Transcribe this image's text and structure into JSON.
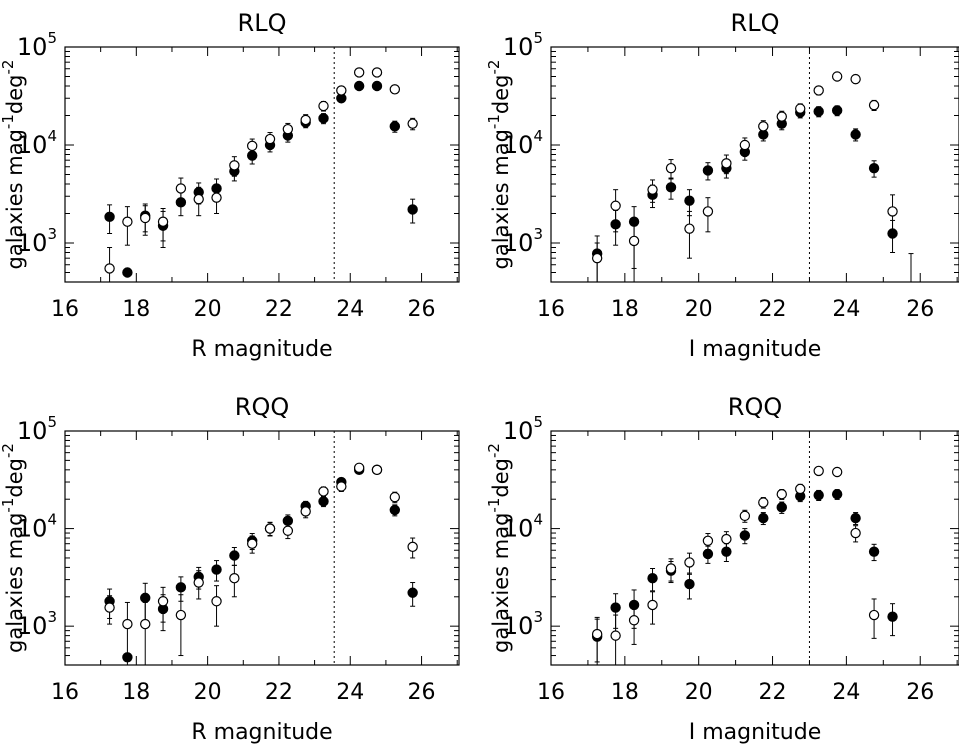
{
  "chart_data": [
    {
      "type": "scatter",
      "title": "RLQ",
      "xlabel": "R magnitude",
      "ylabel": {
        "prefix": "galaxies mag",
        "exp1": "-1",
        "mid": "deg",
        "exp2": "-2"
      },
      "x_ticks": [
        "16",
        "18",
        "20",
        "22",
        "24",
        "26"
      ],
      "y_ticks": [
        {
          "base": "10",
          "exp": "3",
          "value": 1000
        },
        {
          "base": "10",
          "exp": "4",
          "value": 10000
        },
        {
          "base": "10",
          "exp": "5",
          "value": 100000
        }
      ],
      "xlim": [
        16,
        27.05
      ],
      "ylim": [
        400,
        100000
      ],
      "y_scale": "log",
      "completeness_limit_x": 23.55,
      "series": [
        {
          "marker": "filled-circle",
          "x": [
            17.25,
            17.75,
            18.25,
            18.75,
            19.25,
            19.75,
            20.25,
            20.75,
            21.25,
            21.75,
            22.25,
            22.75,
            23.25,
            23.75,
            24.25,
            24.75,
            25.25,
            25.75
          ],
          "y": [
            1850,
            500,
            1900,
            1500,
            2600,
            3300,
            3600,
            5400,
            7800,
            10000,
            12500,
            17000,
            18700,
            30000,
            40000,
            40000,
            15500,
            2200
          ],
          "err_low": [
            600,
            0,
            600,
            600,
            700,
            800,
            900,
            1100,
            1400,
            1500,
            1800,
            2000,
            2200,
            2500,
            3000,
            3000,
            2000,
            600
          ],
          "err_high": [
            600,
            0,
            600,
            600,
            700,
            800,
            900,
            1100,
            1400,
            1500,
            1800,
            2000,
            2200,
            2500,
            3000,
            3000,
            2000,
            600
          ]
        },
        {
          "marker": "open-circle",
          "x": [
            17.25,
            17.75,
            18.25,
            18.75,
            19.25,
            19.75,
            20.25,
            20.75,
            21.25,
            21.75,
            22.25,
            22.75,
            23.25,
            23.75,
            24.25,
            24.75,
            25.25,
            25.75
          ],
          "y": [
            550,
            1650,
            1800,
            1650,
            3600,
            2800,
            2900,
            6200,
            9800,
            11500,
            14500,
            18000,
            25000,
            36000,
            55000,
            55000,
            37000,
            16500
          ],
          "err_low": [
            300,
            700,
            600,
            600,
            1000,
            900,
            900,
            1400,
            1700,
            1900,
            2100,
            2400,
            2800,
            3500,
            4500,
            4500,
            3500,
            2200
          ],
          "err_high": [
            350,
            700,
            600,
            600,
            1000,
            900,
            900,
            1400,
            1700,
            1900,
            2100,
            2400,
            2800,
            3500,
            4500,
            4500,
            3500,
            2200
          ]
        }
      ]
    },
    {
      "type": "scatter",
      "title": "RLQ",
      "xlabel": "I magnitude",
      "ylabel": {
        "prefix": "galaxies mag",
        "exp1": "-1",
        "mid": "deg",
        "exp2": "-2"
      },
      "x_ticks": [
        "16",
        "18",
        "20",
        "22",
        "24",
        "26"
      ],
      "y_ticks": [
        {
          "base": "10",
          "exp": "3",
          "value": 1000
        },
        {
          "base": "10",
          "exp": "4",
          "value": 10000
        },
        {
          "base": "10",
          "exp": "5",
          "value": 100000
        }
      ],
      "xlim": [
        16,
        27.05
      ],
      "ylim": [
        400,
        100000
      ],
      "y_scale": "log",
      "completeness_limit_x": 23.0,
      "series": [
        {
          "marker": "filled-circle",
          "x": [
            17.25,
            17.75,
            18.25,
            18.75,
            19.25,
            19.75,
            20.25,
            20.75,
            21.25,
            21.75,
            22.25,
            22.75,
            23.25,
            23.75,
            24.25,
            24.75,
            25.25,
            25.75
          ],
          "y": [
            780,
            1550,
            1650,
            3100,
            3700,
            2700,
            5500,
            5800,
            8500,
            12800,
            16500,
            21500,
            22000,
            22500,
            12800,
            5800,
            1250,
            0
          ],
          "err_low": [
            380,
            600,
            1650,
            800,
            900,
            800,
            1100,
            1200,
            1500,
            1800,
            2200,
            2600,
            2600,
            2600,
            1800,
            1100,
            450,
            0
          ],
          "err_high": [
            400,
            600,
            700,
            800,
            900,
            800,
            1100,
            1200,
            1500,
            1800,
            2200,
            2600,
            2600,
            2600,
            1800,
            1100,
            450,
            780
          ]
        },
        {
          "marker": "open-circle",
          "x": [
            17.25,
            17.75,
            18.25,
            18.75,
            19.25,
            19.75,
            20.25,
            20.75,
            21.25,
            21.75,
            22.25,
            22.75,
            23.25,
            23.75,
            24.25,
            24.75,
            25.25,
            25.75
          ],
          "y": [
            700,
            2400,
            1050,
            3500,
            5800,
            1400,
            2100,
            6500,
            10000,
            15500,
            19500,
            23500,
            36000,
            50000,
            47000,
            25500,
            2100,
            0
          ],
          "err_low": [
            300,
            1100,
            500,
            900,
            1300,
            700,
            800,
            1400,
            1800,
            2200,
            2600,
            2800,
            3500,
            4500,
            4300,
            3000,
            800,
            0
          ],
          "err_high": [
            300,
            1100,
            500,
            900,
            1300,
            700,
            800,
            1400,
            1800,
            2200,
            2600,
            2800,
            3500,
            4500,
            4300,
            3000,
            1000,
            0
          ]
        }
      ]
    },
    {
      "type": "scatter",
      "title": "RQQ",
      "xlabel": "R magnitude",
      "ylabel": {
        "prefix": "galaxies mag",
        "exp1": "-1",
        "mid": "deg",
        "exp2": "-2"
      },
      "x_ticks": [
        "16",
        "18",
        "20",
        "22",
        "24",
        "26"
      ],
      "y_ticks": [
        {
          "base": "10",
          "exp": "3",
          "value": 1000
        },
        {
          "base": "10",
          "exp": "4",
          "value": 10000
        },
        {
          "base": "10",
          "exp": "5",
          "value": 100000
        }
      ],
      "xlim": [
        16,
        27.05
      ],
      "ylim": [
        400,
        100000
      ],
      "y_scale": "log",
      "completeness_limit_x": 23.55,
      "series": [
        {
          "marker": "filled-circle",
          "x": [
            17.25,
            17.75,
            18.25,
            18.75,
            19.25,
            19.75,
            20.25,
            20.75,
            21.25,
            21.75,
            22.25,
            22.75,
            23.25,
            23.75,
            24.25,
            24.75,
            25.25,
            25.75
          ],
          "y": [
            1800,
            480,
            1950,
            1500,
            2500,
            3200,
            3800,
            5300,
            7500,
            10000,
            12000,
            17000,
            19000,
            30000,
            40000,
            40000,
            15500,
            2200
          ],
          "err_low": [
            600,
            0,
            800,
            600,
            700,
            800,
            900,
            1100,
            1400,
            1500,
            1800,
            2000,
            2200,
            2500,
            3000,
            3000,
            2000,
            600
          ],
          "err_high": [
            600,
            0,
            800,
            600,
            700,
            800,
            900,
            1100,
            1400,
            1500,
            1800,
            2000,
            2200,
            2500,
            3000,
            3000,
            2000,
            600
          ]
        },
        {
          "marker": "open-circle",
          "x": [
            17.25,
            17.75,
            18.25,
            18.75,
            19.25,
            19.75,
            20.25,
            20.75,
            21.25,
            21.75,
            22.25,
            22.75,
            23.25,
            23.75,
            24.25,
            24.75,
            25.25,
            25.75
          ],
          "y": [
            1550,
            1050,
            1050,
            1800,
            1300,
            2800,
            1800,
            3100,
            7000,
            10000,
            9500,
            15000,
            24000,
            27000,
            42000,
            40000,
            21000,
            6500
          ],
          "err_low": [
            500,
            700,
            700,
            700,
            800,
            900,
            800,
            1100,
            1400,
            1600,
            1600,
            2100,
            2700,
            3000,
            3500,
            3500,
            2600,
            1500
          ],
          "err_high": [
            500,
            700,
            700,
            700,
            800,
            900,
            800,
            1100,
            1400,
            1600,
            1600,
            2100,
            2700,
            3000,
            3500,
            3500,
            2600,
            1500
          ]
        }
      ]
    },
    {
      "type": "scatter",
      "title": "RQQ",
      "xlabel": "I magnitude",
      "ylabel": {
        "prefix": "galaxies mag",
        "exp1": "-1",
        "mid": "deg",
        "exp2": "-2"
      },
      "x_ticks": [
        "16",
        "18",
        "20",
        "22",
        "24",
        "26"
      ],
      "y_ticks": [
        {
          "base": "10",
          "exp": "3",
          "value": 1000
        },
        {
          "base": "10",
          "exp": "4",
          "value": 10000
        },
        {
          "base": "10",
          "exp": "5",
          "value": 100000
        }
      ],
      "xlim": [
        16,
        27.05
      ],
      "ylim": [
        400,
        100000
      ],
      "y_scale": "log",
      "completeness_limit_x": 23.0,
      "series": [
        {
          "marker": "filled-circle",
          "x": [
            17.25,
            17.75,
            18.25,
            18.75,
            19.25,
            19.75,
            20.25,
            20.75,
            21.25,
            21.75,
            22.25,
            22.75,
            23.25,
            23.75,
            24.25,
            24.75,
            25.25
          ],
          "y": [
            780,
            1550,
            1650,
            3100,
            3700,
            2700,
            5500,
            5800,
            8500,
            12800,
            16500,
            21500,
            22000,
            22500,
            12800,
            5800,
            1250
          ],
          "err_low": [
            380,
            600,
            700,
            800,
            900,
            800,
            1100,
            1200,
            1500,
            1800,
            2200,
            2600,
            2600,
            2600,
            1800,
            1100,
            450
          ],
          "err_high": [
            400,
            600,
            700,
            800,
            900,
            800,
            1100,
            1200,
            1500,
            1800,
            2200,
            2600,
            2600,
            2600,
            1800,
            1100,
            450
          ]
        },
        {
          "marker": "open-circle",
          "x": [
            17.25,
            17.75,
            18.25,
            18.75,
            19.25,
            19.75,
            20.25,
            20.75,
            21.25,
            21.75,
            22.25,
            22.75,
            23.25,
            23.75,
            24.25,
            24.75
          ],
          "y": [
            830,
            800,
            1150,
            1650,
            3900,
            4500,
            7500,
            7800,
            13500,
            18500,
            22500,
            25500,
            39000,
            38000,
            9000,
            1300
          ],
          "err_low": [
            400,
            500,
            500,
            600,
            1000,
            1100,
            1400,
            1500,
            1900,
            2300,
            2600,
            2900,
            3500,
            3500,
            1700,
            550
          ],
          "err_high": [
            400,
            500,
            500,
            600,
            1000,
            1100,
            1400,
            1500,
            1900,
            2300,
            2600,
            2900,
            3500,
            3500,
            1700,
            600
          ]
        }
      ]
    }
  ]
}
